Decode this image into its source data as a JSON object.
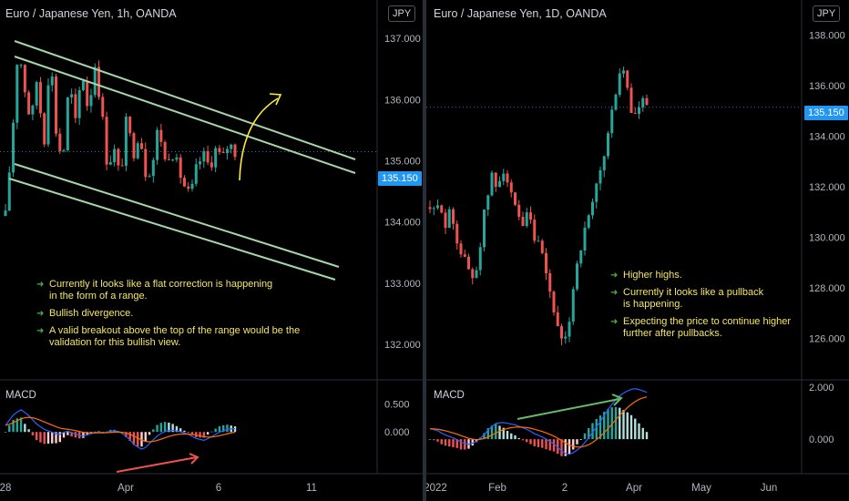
{
  "left": {
    "title": "Euro / Japanese Yen, 1h, OANDA",
    "currency": "JPY",
    "macd_label": "MACD",
    "last_price": "135.150",
    "price_axis": [
      "137.000",
      "136.000",
      "135.000",
      "134.000",
      "133.000",
      "132.000"
    ],
    "macd_axis": [
      "0.500",
      "0.000"
    ],
    "time_axis": [
      "28",
      "Apr",
      "6",
      "11"
    ],
    "notes": [
      "Currently it looks like a flat correction is happening\nin the form of a range.",
      "Bullish divergence.",
      "A valid breakout above the top of the range would be the\nvalidation for this bullish view."
    ],
    "colors": {
      "channel": "#a5d6a7",
      "arrow": "#ffeb3b",
      "divergence": "#ef5350"
    }
  },
  "right": {
    "title": "Euro / Japanese Yen, 1D, OANDA",
    "currency": "JPY",
    "macd_label": "MACD",
    "last_price": "135.150",
    "price_axis": [
      "138.000",
      "136.000",
      "134.000",
      "132.000",
      "130.000",
      "128.000",
      "126.000"
    ],
    "macd_axis": [
      "2.000",
      "0.000"
    ],
    "time_axis": [
      "2022",
      "Feb",
      "2",
      "Apr",
      "May",
      "Jun"
    ],
    "notes": [
      "Higher highs.",
      "Currently it looks like a pullback\nis happening.",
      "Expecting the price to continue higher\nfurther after pullbacks."
    ],
    "colors": {
      "divergence": "#66bb6a"
    }
  },
  "chart_data": [
    {
      "type": "candlestick",
      "title": "Euro / Japanese Yen, 1h, OANDA",
      "ylim": [
        131.6,
        137.3
      ],
      "macd_ylim": [
        -0.5,
        0.8
      ],
      "close_path": [
        134.1,
        135.3,
        136.9,
        136.2,
        135.6,
        136.4,
        135.2,
        136.8,
        135.4,
        135.0,
        136.3,
        135.6,
        136.5,
        135.8,
        136.6,
        135.9,
        134.9,
        135.2,
        134.7,
        135.7,
        135.1,
        135.5,
        134.8,
        134.9,
        135.6,
        135.0,
        135.2,
        134.9,
        134.6,
        134.4,
        134.9,
        135.1,
        134.9,
        135.2,
        135.0,
        135.3,
        135.15
      ],
      "macd_path": [
        0.12,
        0.3,
        0.4,
        0.3,
        0.15,
        0.05,
        0.0,
        -0.05,
        0.02,
        -0.03,
        -0.08,
        -0.04,
        0.0,
        -0.02,
        0.03,
        0.0,
        -0.1,
        -0.25,
        -0.32,
        -0.18,
        -0.05,
        0.02,
        0.03,
        0.0,
        -0.05,
        -0.12,
        -0.15,
        -0.08,
        0.0,
        0.05,
        0.06
      ],
      "last": 135.15
    },
    {
      "type": "candlestick",
      "title": "Euro / Japanese Yen, 1D, OANDA",
      "ylim": [
        124.8,
        138.6
      ],
      "macd_ylim": [
        -0.8,
        2.0
      ],
      "close_path": [
        131.2,
        130.8,
        131.5,
        130.5,
        131.0,
        130.2,
        129.4,
        129.0,
        128.4,
        128.8,
        130.2,
        131.5,
        132.4,
        131.8,
        133.0,
        132.2,
        131.3,
        130.8,
        130.2,
        131.0,
        130.0,
        129.6,
        129.0,
        128.0,
        127.2,
        126.0,
        125.5,
        126.8,
        128.5,
        129.5,
        130.2,
        130.8,
        131.7,
        132.6,
        133.5,
        134.6,
        135.8,
        136.8,
        136.2,
        135.0,
        134.8,
        135.4,
        135.15
      ],
      "macd_path": [
        0.4,
        0.35,
        0.2,
        0.1,
        0.0,
        -0.15,
        -0.2,
        -0.1,
        0.1,
        0.4,
        0.6,
        0.65,
        0.6,
        0.55,
        0.45,
        0.35,
        0.2,
        0.1,
        -0.05,
        -0.2,
        -0.45,
        -0.6,
        -0.5,
        -0.3,
        0.0,
        0.35,
        0.7,
        1.1,
        1.45,
        1.7,
        1.85,
        1.95,
        1.9,
        1.8
      ],
      "last": 135.15
    }
  ]
}
